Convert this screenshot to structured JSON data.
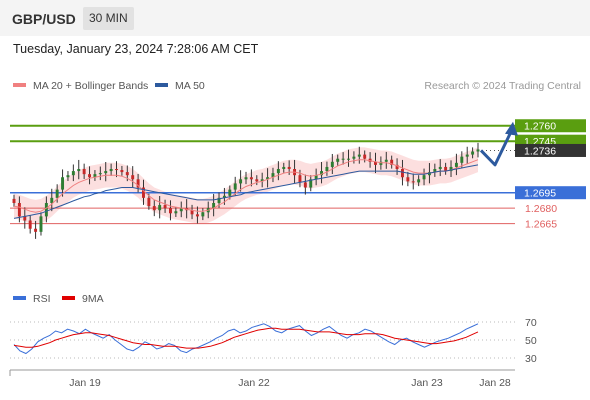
{
  "header": {
    "pair": "GBP/USD",
    "timeframe": "30 MIN"
  },
  "datetime": "Tuesday, January 23, 2024 7:28:06 AM CET",
  "legend": [
    {
      "label": "MA 20 + Bollinger Bands",
      "color": "#f08080"
    },
    {
      "label": "MA 50",
      "color": "#2d5a9e"
    }
  ],
  "credit": "Research © 2024 Trading Central",
  "chart_data": {
    "type": "candlestick",
    "pair": "GBP/USD",
    "timeframe": "30 MIN",
    "ylim": [
      1.2618,
      1.2785
    ],
    "x_ticks": [
      "Jan 19",
      "Jan 22",
      "Jan 23",
      "Jan 28"
    ],
    "levels": [
      {
        "value": 1.276,
        "label": "1.2760",
        "kind": "resistance",
        "color": "#5a9e10"
      },
      {
        "value": 1.2745,
        "label": "1.2745",
        "kind": "resistance",
        "color": "#5a9e10"
      },
      {
        "value": 1.2736,
        "label": "1.2736",
        "kind": "last",
        "color": "#333333"
      },
      {
        "value": 1.2695,
        "label": "1.2695",
        "kind": "pivot",
        "color": "#3a6fd8"
      },
      {
        "value": 1.268,
        "label": "1.2680",
        "kind": "support",
        "color": "#e06060"
      },
      {
        "value": 1.2665,
        "label": "1.2665",
        "kind": "support",
        "color": "#e06060"
      }
    ],
    "close_path": [
      1.2685,
      1.2672,
      1.2668,
      1.266,
      1.2657,
      1.2672,
      1.2685,
      1.269,
      1.2698,
      1.271,
      1.2712,
      1.2716,
      1.2718,
      1.2713,
      1.271,
      1.2713,
      1.2714,
      1.2716,
      1.2718,
      1.2717,
      1.2715,
      1.2712,
      1.2708,
      1.27,
      1.269,
      1.2682,
      1.2678,
      1.2683,
      1.268,
      1.2675,
      1.2677,
      1.268,
      1.2678,
      1.2674,
      1.2672,
      1.2676,
      1.268,
      1.2685,
      1.269,
      1.2692,
      1.2698,
      1.2704,
      1.2708,
      1.271,
      1.2708,
      1.2706,
      1.2708,
      1.271,
      1.2714,
      1.2718,
      1.272,
      1.2718,
      1.2712,
      1.2705,
      1.27,
      1.2708,
      1.2712,
      1.2716,
      1.272,
      1.2725,
      1.2728,
      1.2728,
      1.2728,
      1.273,
      1.2732,
      1.2728,
      1.2725,
      1.2722,
      1.2725,
      1.2727,
      1.2722,
      1.2718,
      1.271,
      1.2706,
      1.2705,
      1.2708,
      1.2712,
      1.2715,
      1.2718,
      1.272,
      1.2716,
      1.272,
      1.2724,
      1.273,
      1.2732,
      1.2735,
      1.2737
    ],
    "ma20": [
      1.2682,
      1.2681,
      1.2679,
      1.2677,
      1.2676,
      1.2677,
      1.268,
      1.2684,
      1.2689,
      1.2694,
      1.2698,
      1.2702,
      1.2705,
      1.2707,
      1.2709,
      1.271,
      1.2711,
      1.2712,
      1.2712,
      1.2712,
      1.2711,
      1.2709,
      1.2706,
      1.2702,
      1.2697,
      1.2692,
      1.2688,
      1.2686,
      1.2684,
      1.2682,
      1.2681,
      1.268,
      1.2679,
      1.2678,
      1.2677,
      1.2677,
      1.2678,
      1.268,
      1.2683,
      1.2686,
      1.269,
      1.2694,
      1.2698,
      1.2701,
      1.2703,
      1.2705,
      1.2706,
      1.2708,
      1.271,
      1.2712,
      1.2714,
      1.2715,
      1.2715,
      1.2714,
      1.2712,
      1.2711,
      1.2712,
      1.2713,
      1.2715,
      1.2718,
      1.2721,
      1.2723,
      1.2725,
      1.2726,
      1.2727,
      1.2727,
      1.2726,
      1.2725,
      1.2724,
      1.2724,
      1.2723,
      1.2721,
      1.2719,
      1.2717,
      1.2715,
      1.2714,
      1.2714,
      1.2714,
      1.2715,
      1.2716,
      1.2716,
      1.2717,
      1.2719,
      1.2721,
      1.2723,
      1.2725,
      1.2727
    ],
    "ma50": [
      1.267,
      1.2671,
      1.2672,
      1.2673,
      1.2674,
      1.2675,
      1.2677,
      1.2679,
      1.2681,
      1.2683,
      1.2685,
      1.2687,
      1.2689,
      1.2691,
      1.2692,
      1.2694,
      1.2695,
      1.2697,
      1.2698,
      1.2699,
      1.27,
      1.27,
      1.27,
      1.2699,
      1.2698,
      1.2697,
      1.2696,
      1.2695,
      1.2694,
      1.2693,
      1.2692,
      1.2691,
      1.269,
      1.2689,
      1.2688,
      1.2688,
      1.2688,
      1.2688,
      1.2689,
      1.269,
      1.2691,
      1.2692,
      1.2693,
      1.2695,
      1.2696,
      1.2697,
      1.2698,
      1.2699,
      1.27,
      1.2701,
      1.2702,
      1.2703,
      1.2704,
      1.2705,
      1.2706,
      1.2707,
      1.2708,
      1.2709,
      1.271,
      1.2711,
      1.2712,
      1.2713,
      1.2714,
      1.2715,
      1.2716,
      1.2716,
      1.2716,
      1.2716,
      1.2716,
      1.2716,
      1.2716,
      1.2716,
      1.2715,
      1.2714,
      1.2713,
      1.2713,
      1.2713,
      1.2714,
      1.2715,
      1.2716,
      1.2716,
      1.2717,
      1.2718,
      1.2719,
      1.272,
      1.2721,
      1.2722
    ],
    "band_width": 0.0012,
    "forecast": [
      1.2736,
      1.2722,
      1.276
    ],
    "rsi": {
      "label": "RSI",
      "ma_label": "9MA",
      "rsi_color": "#3a6fd8",
      "ma_color": "#e00000",
      "ticks": [
        70,
        50,
        30
      ],
      "ylim": [
        20,
        80
      ],
      "values": [
        45,
        38,
        35,
        40,
        48,
        52,
        55,
        60,
        58,
        62,
        60,
        57,
        62,
        58,
        55,
        52,
        56,
        50,
        45,
        40,
        38,
        42,
        48,
        45,
        40,
        42,
        46,
        44,
        38,
        36,
        40,
        42,
        45,
        48,
        52,
        55,
        60,
        62,
        58,
        60,
        64,
        66,
        68,
        65,
        60,
        58,
        62,
        64,
        66,
        60,
        55,
        58,
        62,
        65,
        60,
        55,
        52,
        56,
        58,
        62,
        60,
        56,
        52,
        48,
        45,
        50,
        52,
        48,
        45,
        42,
        45,
        48,
        50,
        52,
        55,
        58,
        62,
        65,
        68
      ],
      "ma": [
        44,
        43,
        42,
        42,
        43,
        45,
        47,
        50,
        52,
        54,
        56,
        57,
        58,
        58,
        57,
        56,
        55,
        53,
        51,
        49,
        47,
        46,
        45,
        45,
        44,
        43,
        43,
        43,
        42,
        41,
        41,
        41,
        42,
        43,
        45,
        47,
        50,
        53,
        55,
        57,
        59,
        61,
        62,
        63,
        63,
        62,
        62,
        62,
        62,
        61,
        60,
        59,
        59,
        59,
        58,
        57,
        56,
        56,
        56,
        57,
        57,
        57,
        56,
        54,
        52,
        51,
        50,
        49,
        48,
        47,
        46,
        46,
        47,
        48,
        49,
        51,
        53,
        56,
        59
      ]
    }
  }
}
